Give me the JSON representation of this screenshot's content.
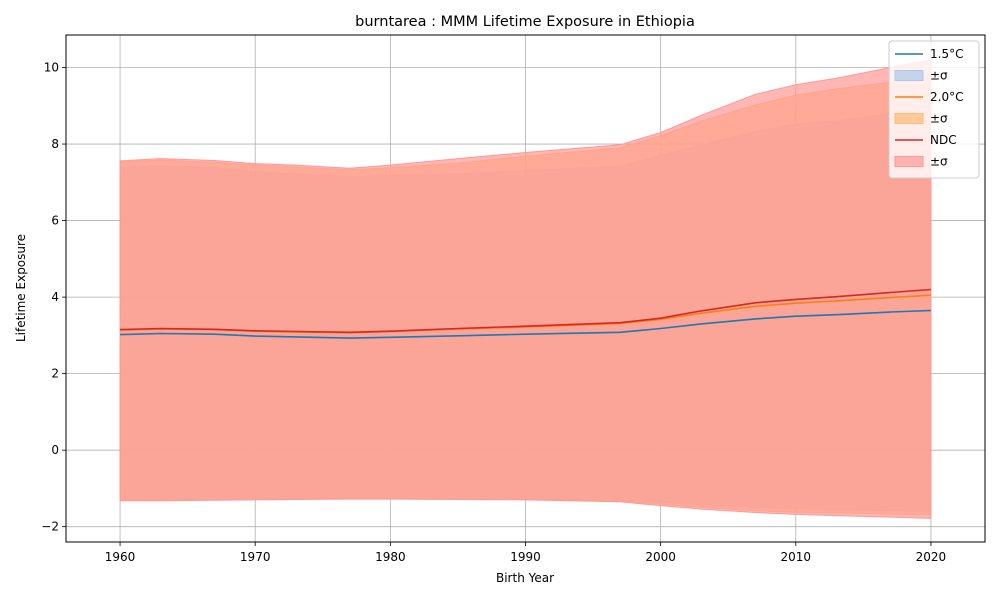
{
  "chart_data": {
    "type": "area",
    "title": "burntarea : MMM Lifetime Exposure in Ethiopia",
    "xlabel": "Birth Year",
    "ylabel": "Lifetime Exposure",
    "xlim": [
      1956,
      2024
    ],
    "ylim": [
      -2.4,
      10.85
    ],
    "xticks": [
      1960,
      1970,
      1980,
      1990,
      2000,
      2010,
      2020
    ],
    "yticks": [
      -2,
      0,
      2,
      4,
      6,
      8,
      10
    ],
    "grid": true,
    "legend_position": "top-right",
    "x": [
      1960,
      1963,
      1967,
      1970,
      1973,
      1977,
      1980,
      1985,
      1990,
      1997,
      2000,
      2003,
      2007,
      2010,
      2013,
      2017,
      2020
    ],
    "series": [
      {
        "name": "1.5°C",
        "band_label": "±σ",
        "color": "#1f77b4",
        "band_color": "#aec7e8",
        "values": [
          3.02,
          3.05,
          3.03,
          2.98,
          2.96,
          2.93,
          2.95,
          2.99,
          3.03,
          3.08,
          3.18,
          3.3,
          3.43,
          3.5,
          3.54,
          3.61,
          3.65
        ],
        "upper": [
          7.4,
          7.44,
          7.38,
          7.28,
          7.22,
          7.15,
          7.18,
          7.22,
          7.3,
          7.42,
          7.7,
          7.98,
          8.32,
          8.52,
          8.6,
          8.8,
          8.92
        ],
        "lower": [
          -1.31,
          -1.31,
          -1.3,
          -1.29,
          -1.28,
          -1.26,
          -1.26,
          -1.26,
          -1.26,
          -1.3,
          -1.36,
          -1.42,
          -1.49,
          -1.53,
          -1.55,
          -1.58,
          -1.6
        ]
      },
      {
        "name": "2.0°C",
        "band_label": "±σ",
        "color": "#ff7f0e",
        "band_color": "#ffbb78",
        "values": [
          3.14,
          3.17,
          3.15,
          3.11,
          3.09,
          3.07,
          3.1,
          3.17,
          3.22,
          3.31,
          3.42,
          3.58,
          3.76,
          3.84,
          3.9,
          3.99,
          4.05
        ],
        "upper": [
          7.53,
          7.58,
          7.52,
          7.45,
          7.4,
          7.33,
          7.38,
          7.5,
          7.68,
          7.9,
          8.22,
          8.6,
          9.02,
          9.28,
          9.44,
          9.62,
          9.72
        ],
        "lower": [
          -1.31,
          -1.31,
          -1.3,
          -1.29,
          -1.28,
          -1.27,
          -1.27,
          -1.28,
          -1.29,
          -1.33,
          -1.41,
          -1.49,
          -1.58,
          -1.62,
          -1.64,
          -1.67,
          -1.69
        ]
      },
      {
        "name": "NDC",
        "band_label": "±σ",
        "color": "#d62728",
        "band_color": "#ff9896",
        "values": [
          3.15,
          3.18,
          3.16,
          3.12,
          3.1,
          3.08,
          3.11,
          3.18,
          3.24,
          3.33,
          3.45,
          3.64,
          3.85,
          3.94,
          4.01,
          4.12,
          4.2
        ],
        "upper": [
          7.56,
          7.62,
          7.57,
          7.49,
          7.45,
          7.37,
          7.45,
          7.62,
          7.78,
          7.98,
          8.3,
          8.75,
          9.3,
          9.55,
          9.72,
          10.0,
          10.2
        ],
        "lower": [
          -1.32,
          -1.32,
          -1.31,
          -1.3,
          -1.29,
          -1.28,
          -1.28,
          -1.29,
          -1.3,
          -1.35,
          -1.45,
          -1.54,
          -1.63,
          -1.68,
          -1.71,
          -1.75,
          -1.78
        ]
      }
    ]
  }
}
